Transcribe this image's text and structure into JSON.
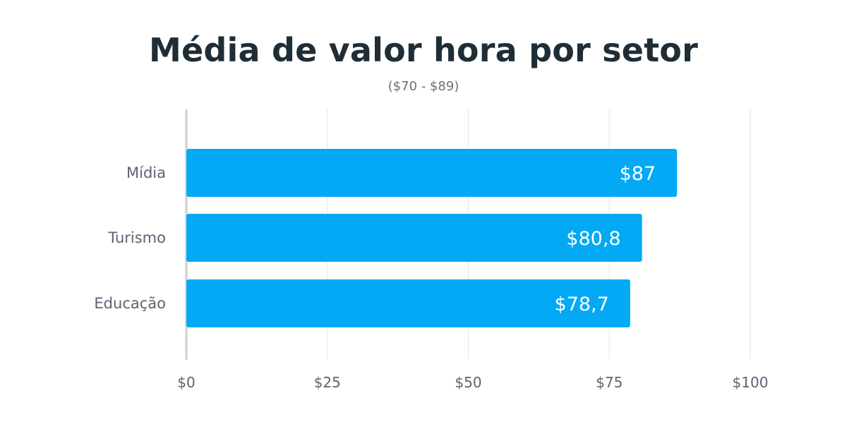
{
  "header": {
    "title": "Média de valor hora por setor",
    "subtitle": "($70 - $89)"
  },
  "colors": {
    "bar": "#03a9f4",
    "grid": "#e6e6e6",
    "axis": "#d9d9d9",
    "label": "#5f6271",
    "value_label": "#ffffff"
  },
  "chart_data": {
    "type": "bar",
    "orientation": "horizontal",
    "title": "Média de valor hora por setor",
    "subtitle": "($70 - $89)",
    "categories": [
      "Mídia",
      "Turismo",
      "Educação"
    ],
    "values": [
      87,
      80.8,
      78.7
    ],
    "value_labels": [
      "$87",
      "$80,8",
      "$78,7"
    ],
    "xlim": [
      0,
      100
    ],
    "xticks": [
      0,
      25,
      50,
      75,
      100
    ],
    "xtick_labels": [
      "$0",
      "$25",
      "$50",
      "$75",
      "$100"
    ],
    "grid": true,
    "legend": "none"
  }
}
